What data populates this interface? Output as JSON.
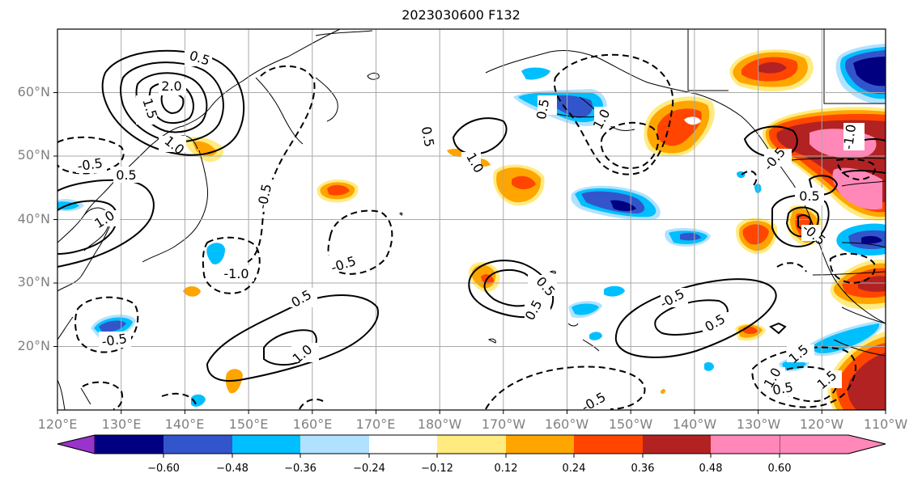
{
  "title": "2023030600 F132",
  "lat_ticks": [
    "60°N",
    "50°N",
    "40°N",
    "30°N",
    "20°N"
  ],
  "lon_ticks": [
    "120°E",
    "130°E",
    "140°E",
    "150°E",
    "160°E",
    "170°E",
    "180°W",
    "170°W",
    "160°W",
    "150°W",
    "140°W",
    "130°W",
    "120°W",
    "110°W"
  ],
  "colorbar": {
    "colors": [
      "#9933cc",
      "#000080",
      "#3355cc",
      "#00bfff",
      "#b0e2ff",
      "#ffffff",
      "#ffeb80",
      "#ffa500",
      "#ff4500",
      "#b22222",
      "#ff88b8"
    ],
    "labels": [
      "−0.60",
      "−0.48",
      "−0.36",
      "−0.24",
      "−0.12",
      "0.12",
      "0.24",
      "0.36",
      "0.48",
      "0.60"
    ]
  },
  "contour_labels": [
    "0.5",
    "2.0",
    "1.5",
    "1.0",
    "-0.5",
    "0.5",
    "1.0",
    "-0.5",
    "-1.0",
    "-0.5",
    "-0.5",
    "0.5",
    "1.0",
    "0.5",
    "1.0",
    "0.5",
    "0.5",
    "0.5",
    "1.0",
    "-0.5",
    "0.5",
    "-0.5",
    "-1.0",
    "-0.5",
    "0.5",
    "1.5",
    "1.0",
    "0.5",
    "-0.5",
    "1.5"
  ]
}
